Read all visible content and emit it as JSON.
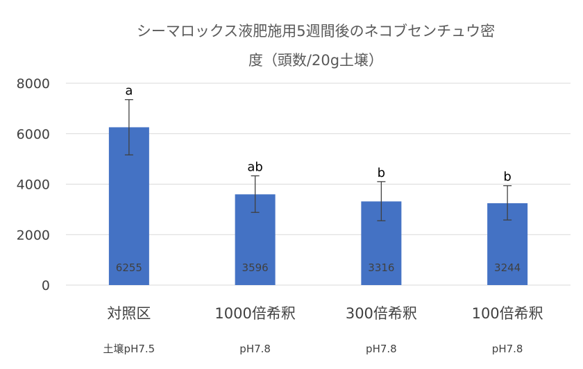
{
  "chart_data": {
    "type": "bar",
    "title_line1": "シーマロックス液肥施用5週間後のネコブセンチュウ密",
    "title_line2": "度（頭数/20g土壌）",
    "categories": [
      "対照区",
      "1000倍希釈",
      "300倍希釈",
      "100倍希釈"
    ],
    "sublabels": [
      "土壌pH7.5",
      "pH7.8",
      "pH7.8",
      "pH7.8"
    ],
    "values": [
      6255,
      3596,
      3316,
      3244
    ],
    "data_labels": [
      "6255",
      "3596",
      "3316",
      "3244"
    ],
    "error_upper": [
      7350,
      4330,
      4100,
      3940
    ],
    "error_lower": [
      5160,
      2880,
      2550,
      2580
    ],
    "significance": [
      "a",
      "ab",
      "b",
      "b"
    ],
    "ylim": [
      0,
      8000
    ],
    "yticks": [
      0,
      2000,
      4000,
      6000,
      8000
    ],
    "ytick_labels": [
      "0",
      "2000",
      "4000",
      "6000",
      "8000"
    ],
    "grid": true,
    "legend": "none",
    "colors": {
      "bar": "#4472c4",
      "grid": "#d9d9d9",
      "error": "#404040"
    }
  }
}
